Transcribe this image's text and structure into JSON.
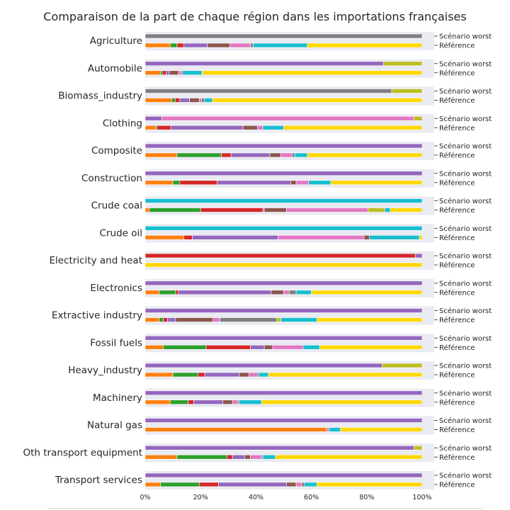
{
  "chart_data": {
    "type": "bar",
    "orientation": "horizontal-stacked",
    "title": "Comparaison de la part de chaque région dans les importations françaises",
    "xlim": [
      0,
      1
    ],
    "x_ticks": [
      "0%",
      "20%",
      "40%",
      "60%",
      "80%",
      "100%"
    ],
    "scenario_labels": [
      "Scénario worst",
      "Référence"
    ],
    "colors": {
      "c0": "#ff7f0e",
      "c1": "#2ca02c",
      "c2": "#d62728",
      "c3": "#9467bd",
      "c4": "#8c564b",
      "c5": "#e377c2",
      "c6": "#7f7f7f",
      "c7": "#bcbd22",
      "c8": "#17becf",
      "c9": "#ffd700"
    },
    "categories": [
      {
        "name": "Agriculture",
        "worst": [
          [
            "c6",
            1.0
          ]
        ],
        "reference": [
          [
            "c0",
            0.09
          ],
          [
            "c1",
            0.025
          ],
          [
            "c2",
            0.025
          ],
          [
            "c3",
            0.085
          ],
          [
            "c4",
            0.08
          ],
          [
            "c5",
            0.075
          ],
          [
            "c6",
            0.01
          ],
          [
            "c8",
            0.195
          ],
          [
            "c9",
            0.415
          ]
        ]
      },
      {
        "name": "Automobile",
        "worst": [
          [
            "c3",
            0.86
          ],
          [
            "c7",
            0.14
          ]
        ],
        "reference": [
          [
            "c0",
            0.055
          ],
          [
            "c1",
            0.007
          ],
          [
            "c2",
            0.013
          ],
          [
            "c3",
            0.012
          ],
          [
            "c4",
            0.033
          ],
          [
            "c5",
            0.01
          ],
          [
            "c6",
            0.005
          ],
          [
            "c8",
            0.07
          ],
          [
            "c9",
            0.795
          ]
        ]
      },
      {
        "name": "Biomass_industry",
        "worst": [
          [
            "c6",
            0.89
          ],
          [
            "c7",
            0.11
          ]
        ],
        "reference": [
          [
            "c0",
            0.095
          ],
          [
            "c1",
            0.013
          ],
          [
            "c2",
            0.017
          ],
          [
            "c3",
            0.035
          ],
          [
            "c4",
            0.035
          ],
          [
            "c5",
            0.008
          ],
          [
            "c6",
            0.01
          ],
          [
            "c8",
            0.03
          ],
          [
            "c9",
            0.757
          ]
        ]
      },
      {
        "name": "Clothing",
        "worst": [
          [
            "c3",
            0.06
          ],
          [
            "c5",
            0.91
          ],
          [
            "c7",
            0.03
          ]
        ],
        "reference": [
          [
            "c0",
            0.038
          ],
          [
            "c1",
            0.005
          ],
          [
            "c2",
            0.05
          ],
          [
            "c3",
            0.26
          ],
          [
            "c4",
            0.052
          ],
          [
            "c5",
            0.02
          ],
          [
            "c8",
            0.075
          ],
          [
            "c9",
            0.5
          ]
        ]
      },
      {
        "name": "Composite",
        "worst": [
          [
            "c3",
            1.0
          ]
        ],
        "reference": [
          [
            "c0",
            0.115
          ],
          [
            "c1",
            0.16
          ],
          [
            "c2",
            0.035
          ],
          [
            "c3",
            0.14
          ],
          [
            "c4",
            0.04
          ],
          [
            "c5",
            0.04
          ],
          [
            "c6",
            0.01
          ],
          [
            "c8",
            0.045
          ],
          [
            "c9",
            0.415
          ]
        ]
      },
      {
        "name": "Construction",
        "worst": [
          [
            "c3",
            1.0
          ]
        ],
        "reference": [
          [
            "c0",
            0.1
          ],
          [
            "c1",
            0.025
          ],
          [
            "c2",
            0.135
          ],
          [
            "c3",
            0.265
          ],
          [
            "c4",
            0.02
          ],
          [
            "c5",
            0.045
          ],
          [
            "c8",
            0.08
          ],
          [
            "c9",
            0.33
          ]
        ]
      },
      {
        "name": "Crude coal",
        "worst": [
          [
            "c8",
            1.0
          ]
        ],
        "reference": [
          [
            "c0",
            0.015
          ],
          [
            "c1",
            0.185
          ],
          [
            "c2",
            0.225
          ],
          [
            "c3",
            0.005
          ],
          [
            "c4",
            0.08
          ],
          [
            "c5",
            0.295
          ],
          [
            "c7",
            0.06
          ],
          [
            "c8",
            0.02
          ],
          [
            "c9",
            0.115
          ]
        ]
      },
      {
        "name": "Crude oil",
        "worst": [
          [
            "c8",
            1.0
          ]
        ],
        "reference": [
          [
            "c0",
            0.14
          ],
          [
            "c2",
            0.03
          ],
          [
            "c3",
            0.31
          ],
          [
            "c5",
            0.31
          ],
          [
            "c4",
            0.02
          ],
          [
            "c8",
            0.18
          ],
          [
            "c9",
            0.01
          ]
        ]
      },
      {
        "name": "Electricity and heat",
        "worst": [
          [
            "c2",
            0.975
          ],
          [
            "c3",
            0.025
          ]
        ],
        "reference": [
          [
            "c9",
            1.0
          ]
        ]
      },
      {
        "name": "Electronics",
        "worst": [
          [
            "c3",
            1.0
          ]
        ],
        "reference": [
          [
            "c0",
            0.05
          ],
          [
            "c1",
            0.06
          ],
          [
            "c2",
            0.01
          ],
          [
            "c3",
            0.335
          ],
          [
            "c4",
            0.045
          ],
          [
            "c5",
            0.02
          ],
          [
            "c6",
            0.025
          ],
          [
            "c8",
            0.055
          ],
          [
            "c9",
            0.4
          ]
        ]
      },
      {
        "name": "Extractive industry",
        "worst": [
          [
            "c3",
            1.0
          ]
        ],
        "reference": [
          [
            "c0",
            0.05
          ],
          [
            "c1",
            0.015
          ],
          [
            "c2",
            0.015
          ],
          [
            "c3",
            0.03
          ],
          [
            "c4",
            0.135
          ],
          [
            "c5",
            0.025
          ],
          [
            "c6",
            0.205
          ],
          [
            "c7",
            0.015
          ],
          [
            "c8",
            0.13
          ],
          [
            "c9",
            0.38
          ]
        ]
      },
      {
        "name": "Fossil fuels",
        "worst": [
          [
            "c3",
            1.0
          ]
        ],
        "reference": [
          [
            "c0",
            0.065
          ],
          [
            "c1",
            0.155
          ],
          [
            "c2",
            0.16
          ],
          [
            "c3",
            0.05
          ],
          [
            "c4",
            0.03
          ],
          [
            "c5",
            0.11
          ],
          [
            "c8",
            0.06
          ],
          [
            "c9",
            0.37
          ]
        ]
      },
      {
        "name": "Heavy_industry",
        "worst": [
          [
            "c3",
            0.855
          ],
          [
            "c7",
            0.145
          ]
        ],
        "reference": [
          [
            "c0",
            0.1
          ],
          [
            "c1",
            0.09
          ],
          [
            "c2",
            0.025
          ],
          [
            "c3",
            0.125
          ],
          [
            "c4",
            0.035
          ],
          [
            "c5",
            0.03
          ],
          [
            "c6",
            0.005
          ],
          [
            "c8",
            0.035
          ],
          [
            "c9",
            0.555
          ]
        ]
      },
      {
        "name": "Machinery",
        "worst": [
          [
            "c3",
            1.0
          ]
        ],
        "reference": [
          [
            "c0",
            0.09
          ],
          [
            "c1",
            0.065
          ],
          [
            "c2",
            0.02
          ],
          [
            "c3",
            0.105
          ],
          [
            "c4",
            0.035
          ],
          [
            "c5",
            0.02
          ],
          [
            "c6",
            0.005
          ],
          [
            "c8",
            0.08
          ],
          [
            "c9",
            0.58
          ]
        ]
      },
      {
        "name": "Natural gas",
        "worst": [
          [
            "c3",
            1.0
          ]
        ],
        "reference": [
          [
            "c0",
            0.655
          ],
          [
            "c5",
            0.01
          ],
          [
            "c8",
            0.04
          ],
          [
            "c9",
            0.295
          ]
        ]
      },
      {
        "name": "Oth transport equipment",
        "worst": [
          [
            "c3",
            0.97
          ],
          [
            "c7",
            0.03
          ]
        ],
        "reference": [
          [
            "c0",
            0.115
          ],
          [
            "c1",
            0.18
          ],
          [
            "c2",
            0.02
          ],
          [
            "c3",
            0.045
          ],
          [
            "c4",
            0.02
          ],
          [
            "c5",
            0.04
          ],
          [
            "c6",
            0.005
          ],
          [
            "c8",
            0.045
          ],
          [
            "c9",
            0.53
          ]
        ]
      },
      {
        "name": "Transport services",
        "worst": [
          [
            "c3",
            1.0
          ]
        ],
        "reference": [
          [
            "c0",
            0.055
          ],
          [
            "c1",
            0.14
          ],
          [
            "c2",
            0.07
          ],
          [
            "c3",
            0.245
          ],
          [
            "c4",
            0.035
          ],
          [
            "c5",
            0.02
          ],
          [
            "c6",
            0.01
          ],
          [
            "c8",
            0.045
          ],
          [
            "c9",
            0.38
          ]
        ]
      }
    ]
  }
}
